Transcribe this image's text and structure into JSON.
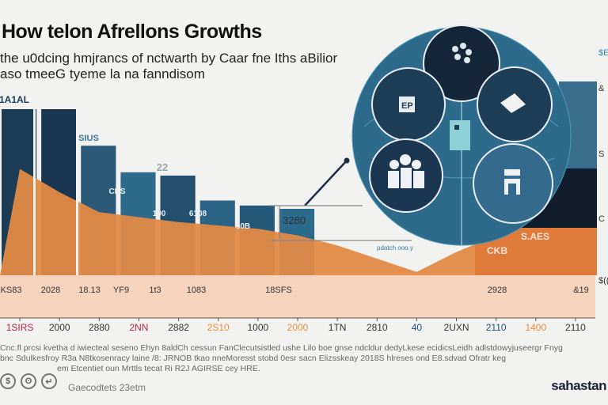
{
  "header": {
    "title": "How telon Afrellons Growths",
    "subtitle_line1": "the u0dcing hmjrancs of nctwarth by  Caar fne Iths aBilior",
    "subtitle_line2": "aso tmeeG tyeme  la na fanndisom"
  },
  "chart_data": {
    "type": "bar",
    "title": "How telon Afrellons Growths",
    "xlabel": "",
    "ylabel": "",
    "categories": [
      "1SIRS",
      "2000",
      "2880",
      "2NN",
      "2882",
      "2S10",
      "1000",
      "2000",
      "1TN",
      "2810",
      "40",
      "2UXN",
      "2110",
      "1400",
      "2110"
    ],
    "series": [
      {
        "name": "dark-blue bars",
        "color": "#1d3d56",
        "values": [
          100,
          100,
          78,
          62,
          60,
          45,
          42,
          40,
          null,
          null,
          null,
          null,
          null,
          null,
          100
        ]
      },
      {
        "name": "orange area",
        "color": "#e28a45",
        "values": [
          64,
          50,
          38,
          35,
          32,
          30,
          28,
          24,
          18,
          10,
          2,
          14,
          24,
          30,
          30
        ]
      }
    ],
    "bar_labels": [
      {
        "text": "1A1AL",
        "series": 0,
        "index": 0
      },
      {
        "text": "SIUS",
        "series": 0,
        "index": 2
      },
      {
        "text": "22",
        "series": 0,
        "index": 4
      },
      {
        "text": "CNS",
        "series": 0,
        "index": 3
      },
      {
        "text": "100",
        "series": 0,
        "index": 4
      },
      {
        "text": "6108",
        "series": 0,
        "index": 5
      },
      {
        "text": "c0B",
        "series": 0,
        "index": 6
      },
      {
        "text": "3280",
        "series": 1,
        "index": 8
      },
      {
        "text": "S.AES",
        "series": 1,
        "index": 13
      },
      {
        "text": "CKB",
        "series": 1,
        "index": 12
      }
    ],
    "band_labels": [
      "KS83",
      "2028",
      "18.13",
      "YF9",
      "1t3",
      "1083",
      "18SFS",
      "2928",
      "&19"
    ],
    "right_labels": [
      "$E",
      "&",
      "S",
      "C",
      "$(("
    ],
    "ylim": [
      0,
      100
    ],
    "grid": false,
    "legend": "none",
    "axis_label_colors": [
      "#b0284a",
      "#333333",
      "#333333",
      "#b0284a",
      "#333333",
      "#e29040",
      "#333333",
      "#e29040",
      "#333333",
      "#333333",
      "#1d4f7a",
      "#333333",
      "#1d4f7a",
      "#e29040",
      "#333333"
    ]
  },
  "callouts": {
    "hub_icons": [
      "network-tree-icon",
      "document-icon",
      "card-icon",
      "people-group-icon",
      "building-icon",
      "figure-icon"
    ],
    "annotation": "pdatch ooo.y"
  },
  "footer": {
    "note_line1": "Cnc.fl prcsi kvetha d iwiecteal seseno Ehyn 8aldCh cessun FanClecutsistled ushe Lilo boe gnse ndcldur dedyLkese ecidicsLeidh adlstdowyjuseergr Fnyg",
    "note_line2": "bnc Sdulkesfroy R3a N8tkosenracy laine /8:  JRNOB tkao nneMoresst stobd 0esr sacn Elizsskeay 2018S hlreses ond E8.sdvad Ofratr keg",
    "note_line3": "em Etcentiet oun Mrttls tecat Ri R2J AGIRSE cey HRE.",
    "license_icons": [
      "cc-by-icon",
      "cc-sa-icon",
      "cc-nc-icon"
    ],
    "license_glyphs": [
      "$",
      "ʘ",
      "↵"
    ],
    "credit": "Gaecodtets 23etm",
    "brand": "sahastan"
  }
}
